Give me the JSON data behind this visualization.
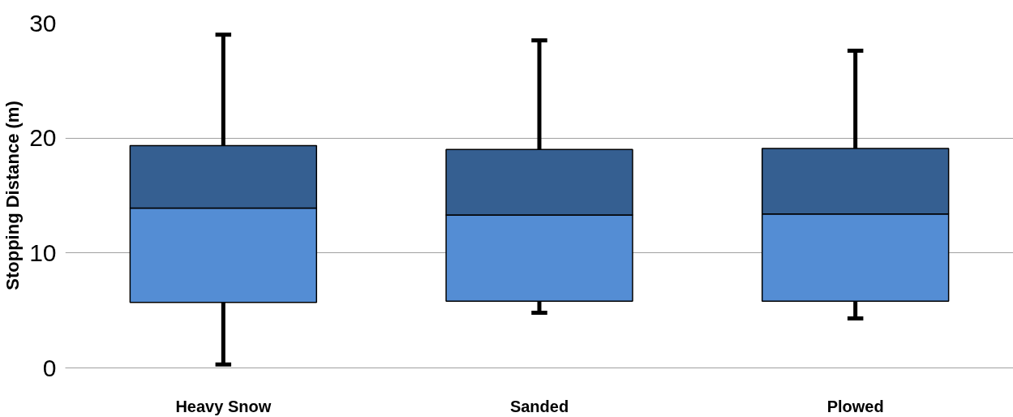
{
  "chart_data": {
    "type": "box",
    "ylabel": "Stopping Distance (m)",
    "categories": [
      "Heavy Snow",
      "Sanded",
      "Plowed"
    ],
    "boxes": [
      {
        "low": 0.3,
        "q1": 5.7,
        "median": 13.9,
        "q3": 19.35,
        "high": 29.0
      },
      {
        "low": 4.8,
        "q1": 5.8,
        "median": 13.3,
        "q3": 19.0,
        "high": 28.5
      },
      {
        "low": 4.3,
        "q1": 5.8,
        "median": 13.4,
        "q3": 19.1,
        "high": 27.6
      }
    ],
    "colors": [
      [
        "#548dd4",
        "#355f91"
      ],
      [
        "#548dd4",
        "#355f91"
      ],
      [
        "#548dd4",
        "#355f91"
      ]
    ],
    "ylim": [
      0,
      30
    ],
    "yticks": [
      0,
      10,
      20,
      30
    ],
    "grid": "y"
  }
}
